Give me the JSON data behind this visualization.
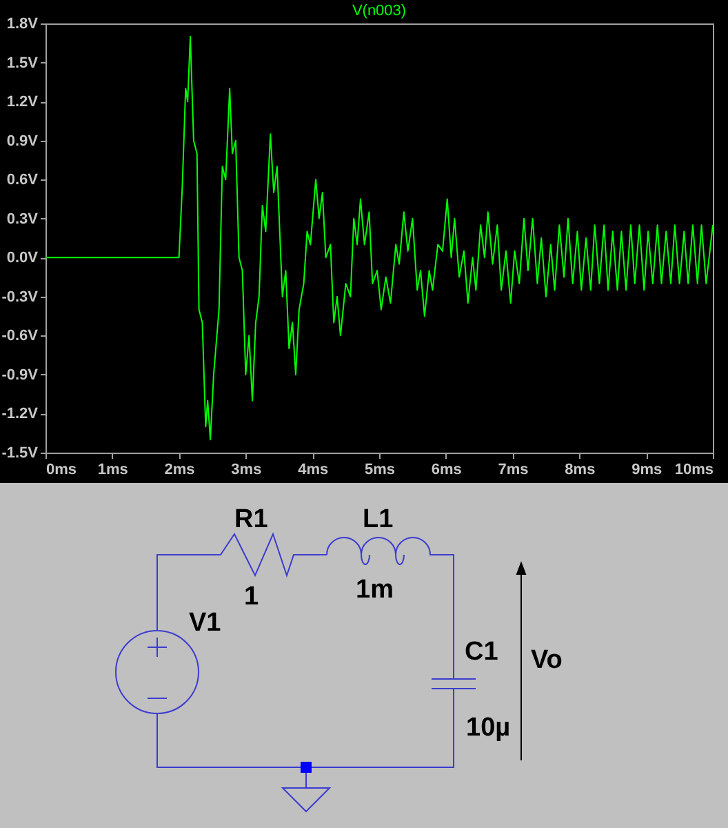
{
  "chart_data": {
    "type": "line",
    "xlim": [
      0,
      10
    ],
    "ylim": [
      -1.5,
      1.8
    ],
    "xticks": [
      {
        "value": 0,
        "label": "0ms"
      },
      {
        "value": 1,
        "label": "1ms"
      },
      {
        "value": 2,
        "label": "2ms"
      },
      {
        "value": 3,
        "label": "3ms"
      },
      {
        "value": 4,
        "label": "4ms"
      },
      {
        "value": 5,
        "label": "5ms"
      },
      {
        "value": 6,
        "label": "6ms"
      },
      {
        "value": 7,
        "label": "7ms"
      },
      {
        "value": 8,
        "label": "8ms"
      },
      {
        "value": 9,
        "label": "9ms"
      },
      {
        "value": 10,
        "label": "10ms"
      }
    ],
    "yticks": [
      {
        "value": -1.5,
        "label": "-1.5V"
      },
      {
        "value": -1.2,
        "label": "-1.2V"
      },
      {
        "value": -0.9,
        "label": "-0.9V"
      },
      {
        "value": -0.6,
        "label": "-0.6V"
      },
      {
        "value": -0.3,
        "label": "-0.3V"
      },
      {
        "value": 0,
        "label": "0.0V"
      },
      {
        "value": 0.3,
        "label": "0.3V"
      },
      {
        "value": 0.6,
        "label": "0.6V"
      },
      {
        "value": 0.9,
        "label": "0.9V"
      },
      {
        "value": 1.2,
        "label": "1.2V"
      },
      {
        "value": 1.5,
        "label": "1.5V"
      },
      {
        "value": 1.8,
        "label": "1.8V"
      }
    ],
    "grid": false,
    "legend": "top",
    "marker": "none",
    "line_style": "solid",
    "x": [
      0,
      2.0,
      2.05,
      2.1,
      2.13,
      2.17,
      2.22,
      2.27,
      2.3,
      2.35,
      2.4,
      2.43,
      2.47,
      2.52,
      2.6,
      2.65,
      2.7,
      2.76,
      2.8,
      2.85,
      2.9,
      2.95,
      3.0,
      3.05,
      3.1,
      3.15,
      3.2,
      3.25,
      3.3,
      3.37,
      3.42,
      3.47,
      3.55,
      3.6,
      3.65,
      3.7,
      3.75,
      3.8,
      3.87,
      3.92,
      3.97,
      4.05,
      4.1,
      4.15,
      4.2,
      4.27,
      4.32,
      4.37,
      4.42,
      4.5,
      4.57,
      4.62,
      4.67,
      4.72,
      4.78,
      4.85,
      4.9,
      4.97,
      5.03,
      5.1,
      5.17,
      5.25,
      5.3,
      5.37,
      5.43,
      5.5,
      5.57,
      5.62,
      5.68,
      5.75,
      5.8,
      5.88,
      5.95,
      6.02,
      6.08,
      6.13,
      6.2,
      6.27,
      6.33,
      6.4,
      6.45,
      6.52,
      6.58,
      6.63,
      6.7,
      6.77,
      6.83,
      6.9,
      6.97,
      7.03,
      7.1,
      7.17,
      7.23,
      7.3,
      7.37,
      7.43,
      7.5,
      7.57,
      7.63,
      7.7,
      7.77,
      7.83,
      7.9,
      7.97,
      8.03,
      8.1,
      8.17,
      8.23,
      8.3,
      8.37,
      8.43,
      8.5,
      8.57,
      8.63,
      8.7,
      8.77,
      8.83,
      8.9,
      8.97,
      9.03,
      9.1,
      9.17,
      9.23,
      9.3,
      9.37,
      9.43,
      9.5,
      9.57,
      9.63,
      9.7,
      9.77,
      9.83,
      9.9,
      10.0
    ],
    "series": [
      {
        "name": "V(n003)",
        "color": "#00ff00",
        "values": [
          0,
          0,
          0.55,
          1.3,
          1.2,
          1.7,
          0.9,
          0.8,
          -0.4,
          -0.5,
          -1.3,
          -1.1,
          -1.4,
          -0.9,
          -0.4,
          0.7,
          0.6,
          1.3,
          0.8,
          0.9,
          0.0,
          -0.1,
          -0.9,
          -0.6,
          -1.1,
          -0.5,
          -0.3,
          0.4,
          0.2,
          0.95,
          0.5,
          0.7,
          -0.3,
          -0.1,
          -0.7,
          -0.5,
          -0.9,
          -0.4,
          -0.2,
          0.2,
          0.1,
          0.6,
          0.3,
          0.5,
          0.0,
          0.1,
          -0.5,
          -0.3,
          -0.6,
          -0.2,
          -0.3,
          0.3,
          0.1,
          0.45,
          0.1,
          0.35,
          -0.2,
          -0.1,
          -0.4,
          -0.15,
          -0.35,
          0.1,
          -0.05,
          0.35,
          0.05,
          0.3,
          -0.25,
          -0.1,
          -0.45,
          -0.1,
          -0.25,
          0.1,
          0.05,
          0.45,
          0.0,
          0.3,
          -0.15,
          0.05,
          -0.35,
          0.0,
          -0.25,
          0.25,
          0.0,
          0.35,
          -0.05,
          0.25,
          -0.25,
          0.05,
          -0.35,
          0.05,
          -0.2,
          0.3,
          -0.1,
          0.3,
          -0.2,
          0.15,
          -0.3,
          0.1,
          -0.25,
          0.25,
          -0.15,
          0.3,
          -0.2,
          0.2,
          -0.25,
          0.15,
          -0.25,
          0.25,
          -0.2,
          0.25,
          -0.25,
          0.2,
          -0.25,
          0.2,
          -0.25,
          0.25,
          -0.2,
          0.25,
          -0.25,
          0.2,
          -0.2,
          0.25,
          -0.2,
          0.2,
          -0.2,
          0.25,
          -0.2,
          0.2,
          -0.2,
          0.25,
          -0.2,
          0.25,
          -0.2,
          0.25
        ]
      }
    ],
    "annotations": [
      "R1",
      "1",
      "L1",
      "1m",
      "V1",
      "C1",
      "Vo",
      "10µ"
    ]
  }
}
